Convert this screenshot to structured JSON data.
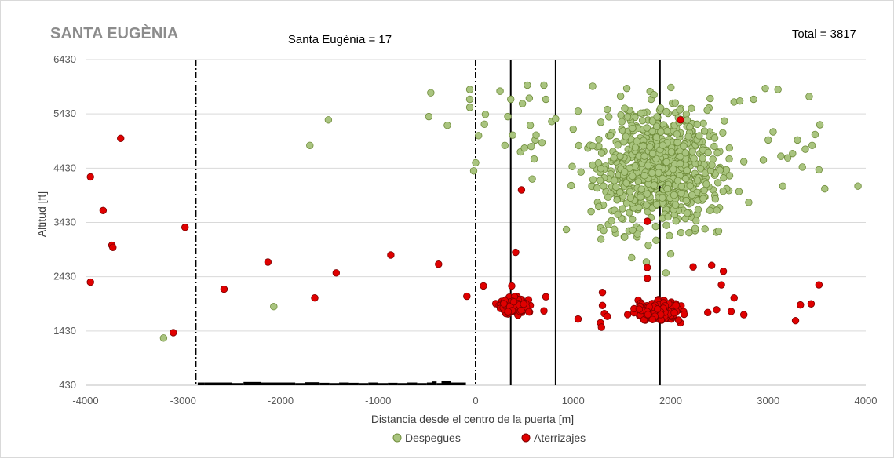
{
  "chart_data": {
    "type": "scatter",
    "title": "SANTA EUGÈNIA",
    "subtitle": "Santa Eugènia = 17",
    "total_label": "Total = 3817",
    "xlabel": "Distancia desde el centro de la puerta [m]",
    "ylabel": "Altitud [ft]",
    "xlim": [
      -4000,
      4000
    ],
    "ylim": [
      430,
      6430
    ],
    "x_ticks": [
      -4000,
      -3000,
      -2000,
      -1000,
      0,
      1000,
      2000,
      3000,
      4000
    ],
    "y_ticks": [
      430,
      1430,
      2430,
      3430,
      4430,
      5430,
      6430
    ],
    "grid": "horizontal",
    "legend_position": "bottom",
    "reference_lines": [
      {
        "x": -2870,
        "style": "dash-dot"
      },
      {
        "x": 0,
        "style": "dash-dot"
      },
      {
        "x": 360,
        "style": "solid"
      },
      {
        "x": 820,
        "style": "solid"
      },
      {
        "x": 1890,
        "style": "solid"
      }
    ],
    "terrain_profile": [
      [
        -2850,
        480
      ],
      [
        -2780,
        480
      ],
      [
        -2500,
        470
      ],
      [
        -2380,
        490
      ],
      [
        -2200,
        480
      ],
      [
        -2000,
        480
      ],
      [
        -1850,
        470
      ],
      [
        -1750,
        485
      ],
      [
        -1600,
        475
      ],
      [
        -1500,
        470
      ],
      [
        -1400,
        480
      ],
      [
        -1300,
        475
      ],
      [
        -1200,
        470
      ],
      [
        -1100,
        480
      ],
      [
        -1000,
        470
      ],
      [
        -900,
        475
      ],
      [
        -800,
        470
      ],
      [
        -700,
        480
      ],
      [
        -600,
        470
      ],
      [
        -500,
        480
      ],
      [
        -450,
        500
      ],
      [
        -400,
        470
      ],
      [
        -350,
        510
      ],
      [
        -250,
        480
      ],
      [
        -100,
        470
      ]
    ],
    "terrain_color": "#000000",
    "series": [
      {
        "name": "Despegues",
        "color": "#a9c47f",
        "edge_color": "#6f8c3a",
        "values": [
          [
            -3200,
            1300
          ],
          [
            -2070,
            1880
          ],
          [
            -1700,
            4850
          ],
          [
            -1510,
            5320
          ],
          [
            -480,
            5380
          ],
          [
            -460,
            5820
          ],
          [
            -290,
            5220
          ],
          [
            -60,
            5550
          ],
          [
            -60,
            5700
          ],
          [
            -60,
            5880
          ],
          [
            -20,
            4380
          ],
          [
            0,
            4530
          ],
          [
            30,
            5030
          ],
          [
            90,
            5240
          ],
          [
            100,
            5420
          ],
          [
            250,
            5850
          ],
          [
            300,
            4850
          ],
          [
            330,
            5380
          ],
          [
            360,
            5700
          ],
          [
            380,
            5040
          ],
          [
            460,
            4730
          ],
          [
            480,
            5620
          ],
          [
            500,
            4800
          ],
          [
            530,
            5960
          ],
          [
            550,
            5720
          ],
          [
            560,
            5220
          ],
          [
            570,
            4830
          ],
          [
            580,
            4230
          ],
          [
            600,
            4600
          ],
          [
            610,
            4950
          ],
          [
            620,
            5040
          ],
          [
            680,
            4900
          ],
          [
            700,
            5960
          ],
          [
            720,
            5700
          ],
          [
            780,
            5290
          ],
          [
            820,
            5340
          ],
          [
            930,
            3300
          ],
          [
            980,
            4110
          ],
          [
            990,
            4460
          ],
          [
            1000,
            5150
          ],
          [
            1050,
            5480
          ],
          [
            1080,
            4360
          ],
          [
            1150,
            4800
          ],
          [
            1200,
            5940
          ],
          [
            1250,
            3800
          ],
          [
            1280,
            3330
          ],
          [
            1300,
            4450
          ],
          [
            1350,
            5510
          ],
          [
            1400,
            5090
          ],
          [
            1450,
            3850
          ],
          [
            1500,
            4600
          ],
          [
            1550,
            5900
          ],
          [
            1600,
            2780
          ],
          [
            1650,
            3350
          ],
          [
            1700,
            4200
          ],
          [
            1750,
            2700
          ],
          [
            1800,
            5700
          ],
          [
            1850,
            3100
          ],
          [
            1900,
            4900
          ],
          [
            1950,
            2500
          ],
          [
            2000,
            2850
          ],
          [
            2050,
            5450
          ],
          [
            2100,
            4100
          ],
          [
            2150,
            3500
          ],
          [
            2200,
            5200
          ],
          [
            2250,
            3280
          ],
          [
            2300,
            4700
          ],
          [
            2350,
            3900
          ],
          [
            2400,
            5100
          ],
          [
            2450,
            4300
          ],
          [
            2500,
            3700
          ],
          [
            2550,
            5300
          ],
          [
            2600,
            4600
          ],
          [
            2650,
            5650
          ],
          [
            2700,
            4000
          ],
          [
            2750,
            4550
          ],
          [
            2800,
            3800
          ],
          [
            2850,
            5700
          ],
          [
            2950,
            4580
          ],
          [
            2970,
            5900
          ],
          [
            3000,
            4950
          ],
          [
            3050,
            5100
          ],
          [
            3100,
            5880
          ],
          [
            3130,
            4650
          ],
          [
            3150,
            4100
          ],
          [
            3200,
            4620
          ],
          [
            3250,
            4700
          ],
          [
            3300,
            4950
          ],
          [
            3350,
            4450
          ],
          [
            3380,
            4780
          ],
          [
            3420,
            5750
          ],
          [
            3450,
            4850
          ],
          [
            3480,
            5050
          ],
          [
            3520,
            4400
          ],
          [
            3530,
            5230
          ],
          [
            3580,
            4050
          ],
          [
            3920,
            4100
          ]
        ],
        "cluster": {
          "x_min": 1000,
          "x_max": 2800,
          "y_min": 2700,
          "y_max": 6000,
          "center_x": 1880,
          "center_y": 4450,
          "n": 700
        }
      },
      {
        "name": "Aterrizajes",
        "color": "#e00000",
        "edge_color": "#7a0000",
        "values": [
          [
            -3950,
            2330
          ],
          [
            -3950,
            4270
          ],
          [
            -3820,
            3650
          ],
          [
            -3730,
            3010
          ],
          [
            -3720,
            2970
          ],
          [
            -3640,
            4980
          ],
          [
            -3100,
            1400
          ],
          [
            -2980,
            3340
          ],
          [
            -2580,
            2200
          ],
          [
            -2130,
            2700
          ],
          [
            -1650,
            2040
          ],
          [
            -1430,
            2500
          ],
          [
            -870,
            2830
          ],
          [
            -380,
            2660
          ],
          [
            -90,
            2070
          ],
          [
            80,
            2260
          ],
          [
            370,
            2260
          ],
          [
            410,
            2880
          ],
          [
            470,
            4030
          ],
          [
            560,
            1900
          ],
          [
            700,
            1800
          ],
          [
            720,
            2060
          ],
          [
            1050,
            1650
          ],
          [
            1280,
            1580
          ],
          [
            1290,
            1500
          ],
          [
            1300,
            2140
          ],
          [
            1300,
            1900
          ],
          [
            1320,
            1750
          ],
          [
            1350,
            1700
          ],
          [
            1760,
            2600
          ],
          [
            1760,
            2400
          ],
          [
            1760,
            3450
          ],
          [
            2100,
            1580
          ],
          [
            2100,
            5320
          ],
          [
            2230,
            2610
          ],
          [
            2380,
            1770
          ],
          [
            2420,
            2640
          ],
          [
            2470,
            1820
          ],
          [
            2520,
            2280
          ],
          [
            2540,
            2530
          ],
          [
            2620,
            1790
          ],
          [
            2650,
            2040
          ],
          [
            2750,
            1730
          ],
          [
            3280,
            1620
          ],
          [
            3330,
            1910
          ],
          [
            3440,
            1930
          ],
          [
            3520,
            2280
          ]
        ],
        "clusters": [
          {
            "x_min": 160,
            "x_max": 580,
            "y_min": 1700,
            "y_max": 2100,
            "center_x": 380,
            "center_y": 1900,
            "n": 120
          },
          {
            "x_min": 1500,
            "x_max": 2200,
            "y_min": 1630,
            "y_max": 2150,
            "center_x": 1860,
            "center_y": 1800,
            "n": 200
          }
        ]
      }
    ]
  }
}
